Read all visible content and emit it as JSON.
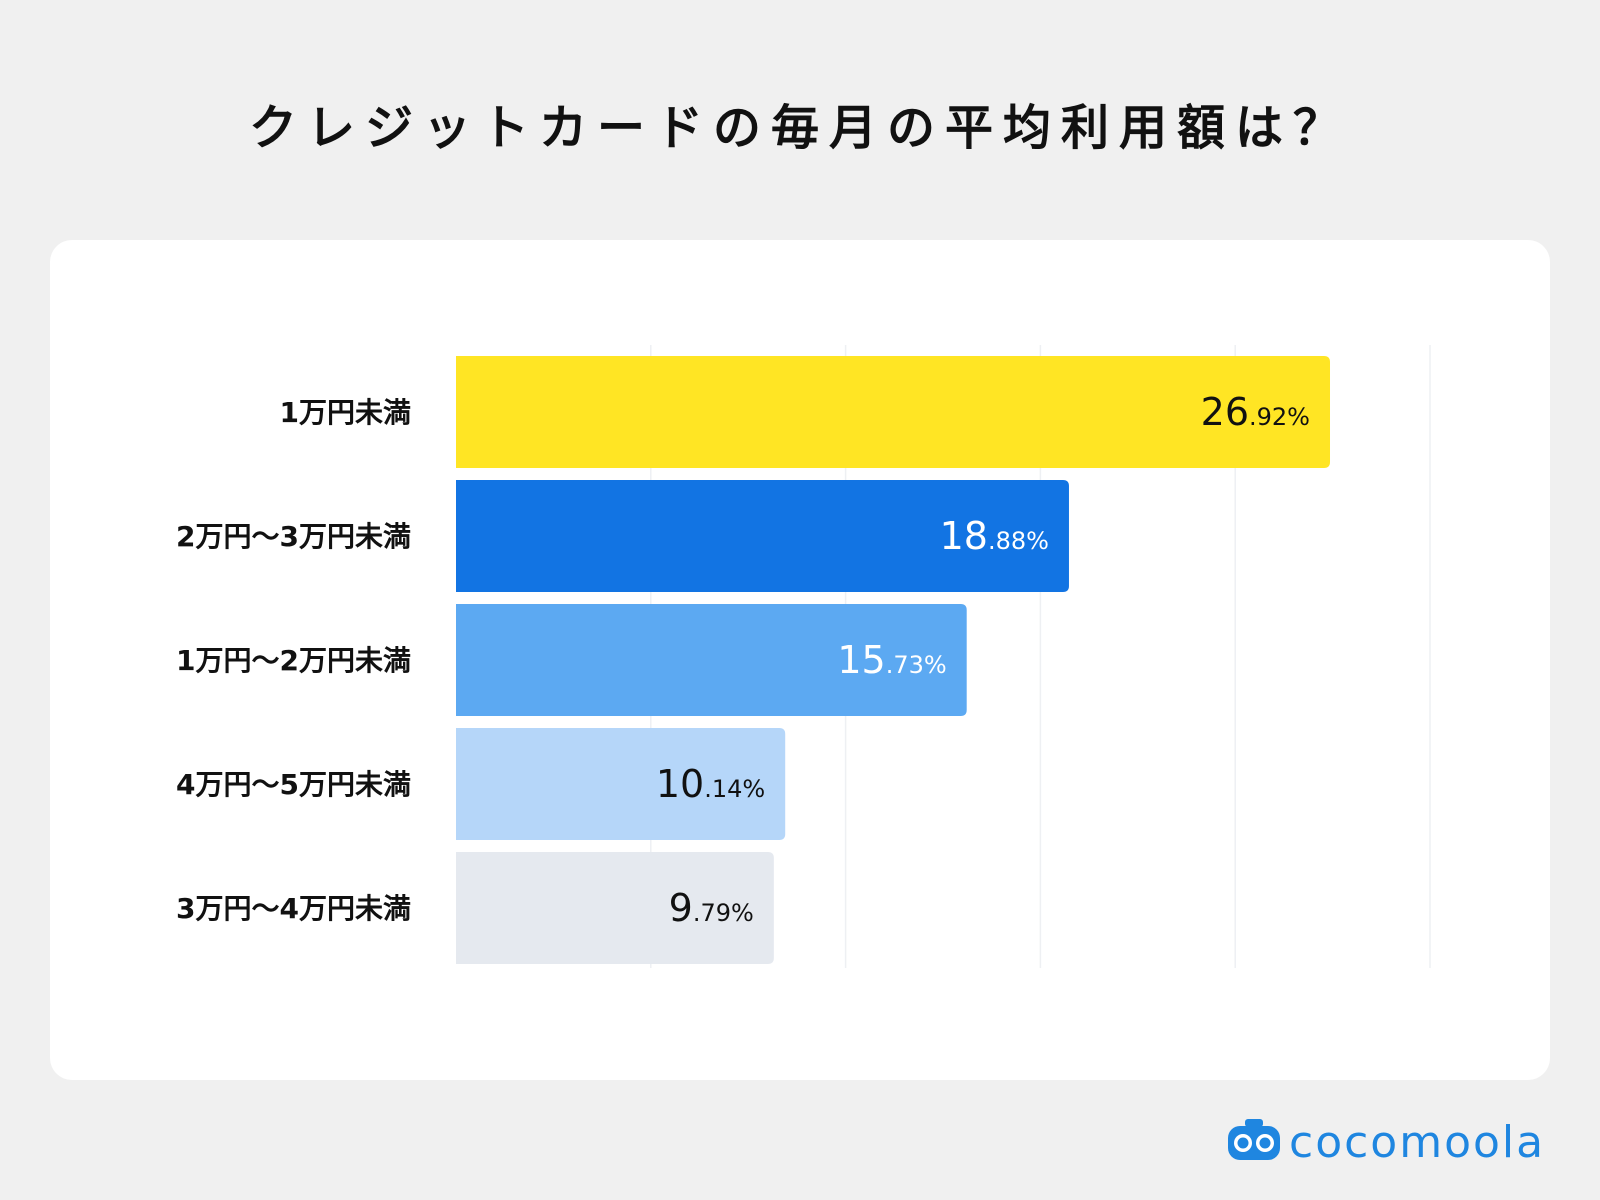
{
  "title": "クレジットカードの毎月の平均利用額は？",
  "brand": {
    "name": "cocomoola",
    "logo_icon": "robot-face-icon",
    "color": "#1f86e0"
  },
  "chart_data": {
    "type": "bar",
    "orientation": "horizontal",
    "categories": [
      "1万円未満",
      "2万円〜3万円未満",
      "1万円〜2万円未満",
      "4万円〜5万円未満",
      "3万円〜4万円未満"
    ],
    "values": [
      26.92,
      18.88,
      15.73,
      10.14,
      9.79
    ],
    "value_labels": [
      {
        "int": "26",
        "dec": ".92%"
      },
      {
        "int": "18",
        "dec": ".88%"
      },
      {
        "int": "15",
        "dec": ".73%"
      },
      {
        "int": "10",
        "dec": ".14%"
      },
      {
        "int": "9",
        "dec": ".79%"
      }
    ],
    "colors": [
      "#ffe524",
      "#1274e3",
      "#5ca9f2",
      "#b5d6f9",
      "#e5e9ef"
    ],
    "label_colors": [
      "#111111",
      "#ffffff",
      "#ffffff",
      "#111111",
      "#111111"
    ],
    "xlim": [
      0,
      30
    ],
    "gridlines": [
      6,
      12,
      18,
      24,
      30
    ],
    "grid": true
  }
}
